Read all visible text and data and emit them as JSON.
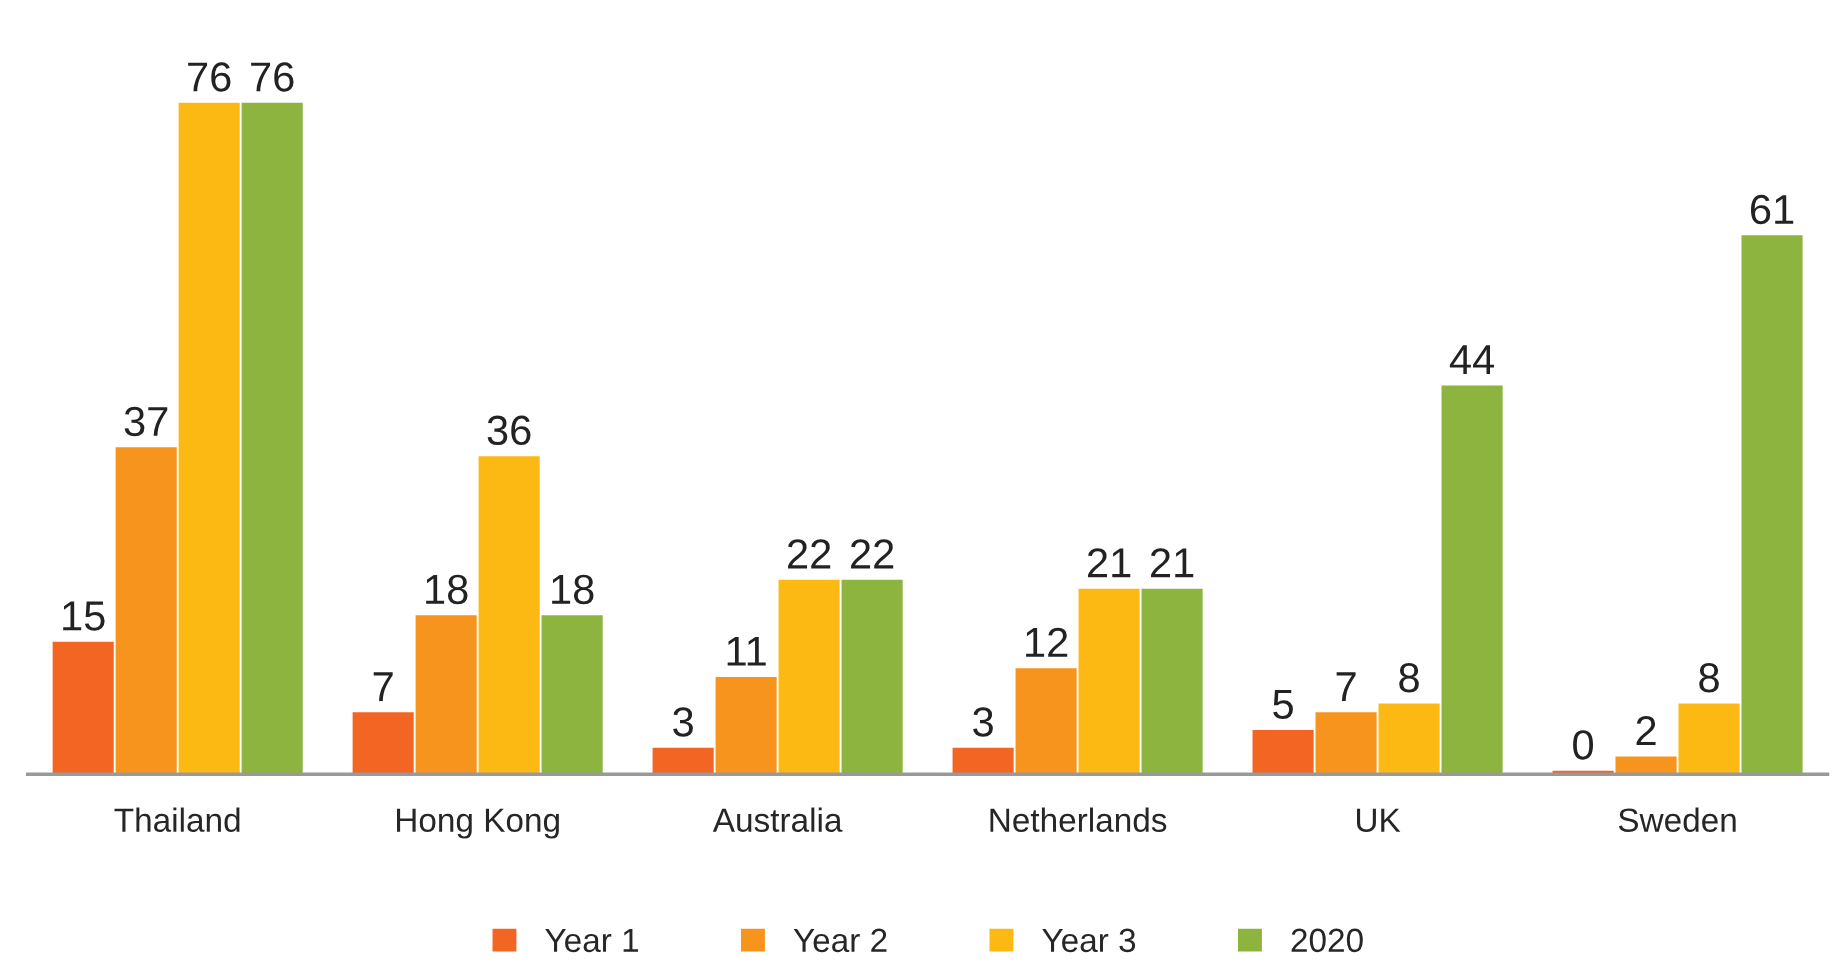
{
  "chart_data": {
    "type": "bar",
    "categories": [
      "Thailand",
      "Hong Kong",
      "Australia",
      "Netherlands",
      "UK",
      "Sweden"
    ],
    "series": [
      {
        "name": "Year 1",
        "color": "#f26522",
        "values": [
          15,
          7,
          3,
          3,
          5,
          0
        ]
      },
      {
        "name": "Year 2",
        "color": "#f7941d",
        "values": [
          37,
          18,
          11,
          12,
          7,
          2
        ]
      },
      {
        "name": "Year 3",
        "color": "#fdb913",
        "values": [
          76,
          36,
          22,
          21,
          8,
          8
        ]
      },
      {
        "name": "2020",
        "color": "#8cb43f",
        "values": [
          76,
          18,
          22,
          21,
          44,
          61
        ]
      }
    ],
    "data_labels": true,
    "legend": "bottom",
    "grid": false,
    "tick_labels": "x"
  }
}
